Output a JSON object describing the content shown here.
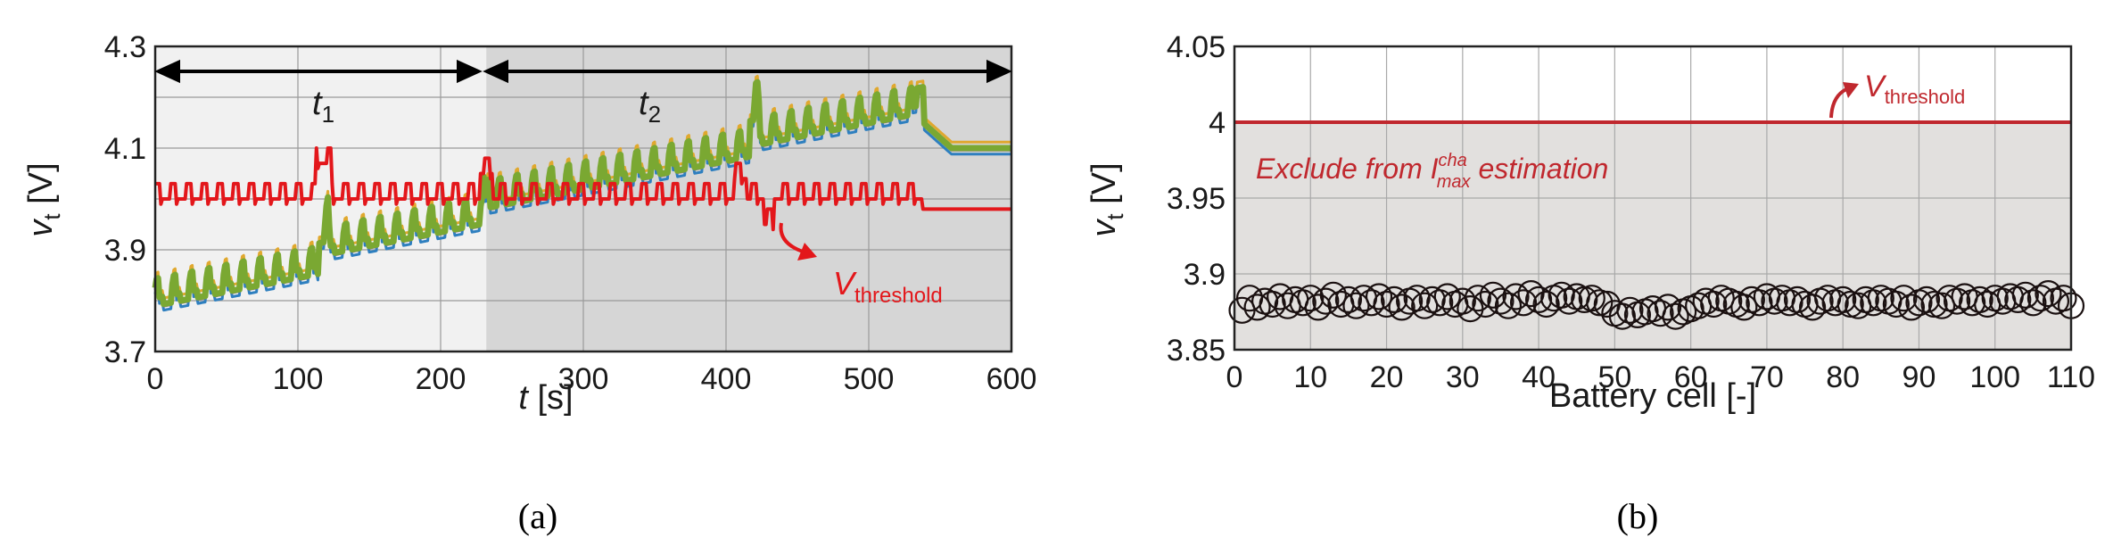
{
  "chart_data": [
    {
      "panel": "(a)",
      "type": "line",
      "xlabel_var": "t",
      "xlabel_unit": "[s]",
      "ylabel_var": "v",
      "ylabel_sub": "t",
      "ylabel_unit": "[V]",
      "xlim": [
        0,
        600
      ],
      "ylim": [
        3.7,
        4.3
      ],
      "xticks": [
        0,
        100,
        200,
        300,
        400,
        500,
        600
      ],
      "yticks": [
        "3.7",
        "3.9",
        "4.1",
        "4.3"
      ],
      "grid": true,
      "regions": [
        {
          "name": "t",
          "sub": "1",
          "x_start": 0,
          "x_end": 232,
          "shade": "#f1f1f1"
        },
        {
          "name": "t",
          "sub": "2",
          "x_start": 232,
          "x_end": 600,
          "shade": "#d6d6d6"
        }
      ],
      "cells_band": {
        "description": "battery cell terminal voltages (many overlapping series)",
        "color": "#7aa832",
        "start_v": 3.79,
        "end_v_at_538": 4.19,
        "settle_v": 4.1,
        "pulse_end_s": 538
      },
      "threshold": {
        "label_main": "V",
        "label_sub": "threshold",
        "color": "#e3171b",
        "base_v": 4.0,
        "drop_at_s": 538,
        "drop_v": 3.98
      }
    },
    {
      "panel": "(b)",
      "type": "scatter",
      "xlabel": "Battery cell [-]",
      "ylabel_var": "v",
      "ylabel_sub": "t",
      "ylabel_unit": "[V]",
      "xlim": [
        0,
        110
      ],
      "ylim": [
        3.85,
        4.05
      ],
      "xticks": [
        0,
        10,
        20,
        30,
        40,
        50,
        60,
        70,
        80,
        90,
        100,
        110
      ],
      "yticks": [
        "3.85",
        "3.9",
        "3.95",
        "4",
        "4.05"
      ],
      "grid": true,
      "threshold_value": 4.0,
      "threshold_label_main": "V",
      "threshold_label_sub": "threshold",
      "exclude_text_before": "Exclude from I",
      "exclude_text_sup": "cha",
      "exclude_text_sub": "max",
      "exclude_text_after": " estimation",
      "cells": [
        1,
        2,
        3,
        4,
        5,
        6,
        7,
        8,
        9,
        10,
        11,
        12,
        13,
        14,
        15,
        16,
        17,
        18,
        19,
        20,
        21,
        22,
        23,
        24,
        25,
        26,
        27,
        28,
        29,
        30,
        31,
        32,
        33,
        34,
        35,
        36,
        37,
        38,
        39,
        40,
        41,
        42,
        43,
        44,
        45,
        46,
        47,
        48,
        49,
        50,
        51,
        52,
        53,
        54,
        55,
        56,
        57,
        58,
        59,
        60,
        61,
        62,
        63,
        64,
        65,
        66,
        67,
        68,
        69,
        70,
        71,
        72,
        73,
        74,
        75,
        76,
        77,
        78,
        79,
        80,
        81,
        82,
        83,
        84,
        85,
        86,
        87,
        88,
        89,
        90,
        91,
        92,
        93,
        94,
        95,
        96,
        97,
        98,
        99,
        100,
        101,
        102,
        103,
        104,
        105,
        106,
        107,
        108,
        109,
        110
      ],
      "voltages": [
        3.876,
        3.884,
        3.878,
        3.882,
        3.88,
        3.885,
        3.879,
        3.883,
        3.881,
        3.884,
        3.878,
        3.882,
        3.886,
        3.88,
        3.883,
        3.879,
        3.884,
        3.881,
        3.885,
        3.88,
        3.883,
        3.878,
        3.882,
        3.884,
        3.879,
        3.883,
        3.881,
        3.885,
        3.88,
        3.882,
        3.877,
        3.884,
        3.88,
        3.886,
        3.882,
        3.879,
        3.885,
        3.881,
        3.887,
        3.883,
        3.88,
        3.884,
        3.886,
        3.882,
        3.885,
        3.883,
        3.884,
        3.881,
        3.88,
        3.874,
        3.872,
        3.876,
        3.873,
        3.875,
        3.877,
        3.874,
        3.878,
        3.872,
        3.875,
        3.877,
        3.879,
        3.882,
        3.88,
        3.884,
        3.882,
        3.88,
        3.878,
        3.883,
        3.881,
        3.885,
        3.882,
        3.884,
        3.881,
        3.883,
        3.88,
        3.878,
        3.882,
        3.884,
        3.881,
        3.883,
        3.88,
        3.879,
        3.883,
        3.881,
        3.884,
        3.882,
        3.88,
        3.884,
        3.878,
        3.881,
        3.883,
        3.88,
        3.879,
        3.884,
        3.882,
        3.885,
        3.881,
        3.883,
        3.88,
        3.884,
        3.882,
        3.885,
        3.883,
        3.886,
        3.881,
        3.884,
        3.887,
        3.882,
        3.884,
        3.879
      ]
    }
  ],
  "captions": {
    "a": "(a)",
    "b": "(b)"
  }
}
